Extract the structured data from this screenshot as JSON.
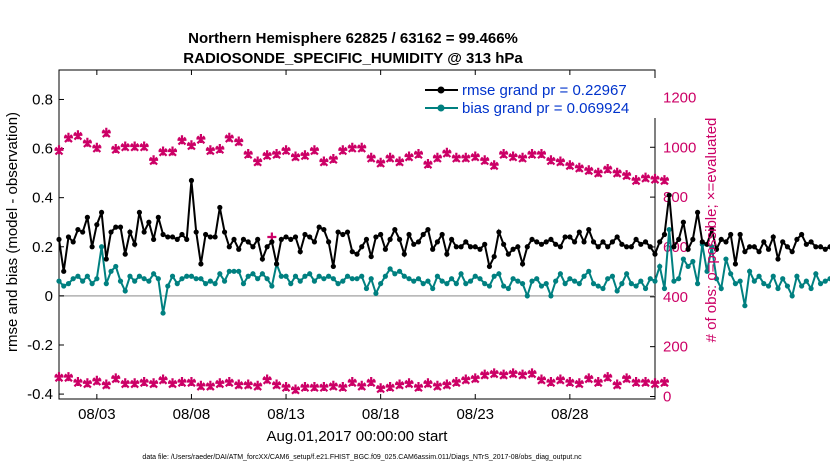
{
  "chart_data": {
    "type": "line",
    "title": "Northern Hemisphere 62825 / 63162 = 99.466%",
    "subtitle": "RADIOSONDE_SPECIFIC_HUMIDITY @ 313 hPa",
    "xlabel": "Aug.01,2017 00:00:00 start",
    "ylabel": "rmse and bias (model - observation)",
    "ylabel_right": "# of obs: o=possible; ×=evaluated",
    "footnote": "data file: /Users/raeder/DAI/ATM_forcXX/CAM6_setup/f.e21.FHIST_BGC.f09_025.CAM6assim.011/Diags_NTrS_2017-08/obs_diag_output.nc",
    "x_range": [
      0,
      31.5
    ],
    "x_ticks": [
      2,
      7,
      12,
      17,
      22,
      27
    ],
    "x_tick_labels": [
      "08/03",
      "08/08",
      "08/13",
      "08/18",
      "08/23",
      "08/28"
    ],
    "ylim": [
      -0.42,
      0.92
    ],
    "y_ticks": [
      -0.4,
      -0.2,
      0,
      0.2,
      0.4,
      0.6,
      0.8
    ],
    "y_tick_labels": [
      "-0.4",
      "-0.2",
      "0",
      "0.2",
      "0.4",
      "0.6",
      "0.8"
    ],
    "y2lim": [
      -10,
      1310
    ],
    "y2_ticks": [
      0,
      200,
      400,
      600,
      800,
      1000,
      1200
    ],
    "y2_tick_labels": [
      "0",
      "200",
      "400",
      "600",
      "800",
      "1000",
      "1200"
    ],
    "zero_line": 0,
    "legend": [
      {
        "label": "rmse grand pr = 0.22967",
        "color": "#000000"
      },
      {
        "label": "bias grand pr = 0.069924",
        "color": "#008080"
      }
    ],
    "colors": {
      "rmse": "#000000",
      "bias": "#008080",
      "obs": "#cc0066",
      "text_blue": "#0033cc",
      "zero": "#b0b0b0"
    },
    "series": [
      {
        "name": "rmse",
        "x_start": 0,
        "x_step": 0.25,
        "values": [
          0.23,
          0.1,
          0.24,
          0.22,
          0.27,
          0.26,
          0.32,
          0.2,
          0.29,
          0.34,
          0.15,
          0.26,
          0.28,
          0.28,
          0.17,
          0.26,
          0.21,
          0.34,
          0.26,
          0.3,
          0.23,
          0.32,
          0.25,
          0.24,
          0.24,
          0.23,
          0.25,
          0.23,
          0.47,
          0.26,
          0.13,
          0.25,
          0.24,
          0.24,
          0.36,
          0.26,
          0.2,
          0.23,
          0.19,
          0.23,
          0.22,
          0.2,
          0.23,
          0.15,
          0.2,
          0.22,
          0.13,
          0.23,
          0.24,
          0.23,
          0.24,
          0.18,
          0.25,
          0.24,
          0.22,
          0.28,
          0.27,
          0.22,
          0.12,
          0.26,
          0.25,
          0.26,
          0.18,
          0.17,
          0.2,
          0.23,
          0.16,
          0.24,
          0.25,
          0.19,
          0.23,
          0.27,
          0.23,
          0.17,
          0.25,
          0.21,
          0.22,
          0.25,
          0.27,
          0.19,
          0.22,
          0.25,
          0.17,
          0.23,
          0.2,
          0.2,
          0.22,
          0.2,
          0.2,
          0.19,
          0.21,
          0.12,
          0.16,
          0.26,
          0.21,
          0.17,
          0.19,
          0.2,
          0.13,
          0.2,
          0.23,
          0.22,
          0.21,
          0.22,
          0.23,
          0.21,
          0.2,
          0.24,
          0.24,
          0.22,
          0.26,
          0.22,
          0.27,
          0.22,
          0.2,
          0.22,
          0.2,
          0.22,
          0.24,
          0.21,
          0.2,
          0.2,
          0.23,
          0.21,
          0.22,
          0.2,
          0.17,
          0.22,
          0.25,
          0.41,
          0.2,
          0.23,
          0.3,
          0.19,
          0.23,
          0.34,
          0.22,
          0.21,
          0.27,
          0.19,
          0.23,
          0.22,
          0.25,
          0.13,
          0.25,
          0.18,
          0.2,
          0.2,
          0.18,
          0.22,
          0.19,
          0.24,
          0.15,
          0.22,
          0.2,
          0.18,
          0.23,
          0.25,
          0.21,
          0.22,
          0.2,
          0.2,
          0.19,
          0.2,
          0.23,
          0.2,
          0.48,
          0.2,
          0.16
        ]
      },
      {
        "name": "bias",
        "x_start": 0,
        "x_step": 0.25,
        "values": [
          0.06,
          0.04,
          0.05,
          0.07,
          0.08,
          0.06,
          0.08,
          0.05,
          0.07,
          0.2,
          0.05,
          0.1,
          0.12,
          0.06,
          0.02,
          0.08,
          0.06,
          0.08,
          0.07,
          0.06,
          0.09,
          0.07,
          -0.07,
          0.04,
          0.08,
          0.05,
          0.07,
          0.08,
          0.08,
          0.07,
          0.07,
          0.05,
          0.06,
          0.05,
          0.09,
          0.06,
          0.1,
          0.1,
          0.1,
          0.05,
          0.08,
          0.09,
          0.07,
          0.09,
          0.07,
          0.04,
          0.13,
          0.08,
          0.08,
          0.05,
          0.08,
          0.06,
          0.08,
          0.09,
          0.06,
          0.08,
          0.07,
          0.08,
          0.07,
          0.05,
          0.06,
          0.08,
          0.07,
          0.07,
          0.08,
          0.03,
          0.07,
          0.01,
          0.05,
          0.08,
          0.11,
          0.09,
          0.1,
          0.08,
          0.07,
          0.06,
          0.07,
          0.05,
          0.06,
          0.03,
          0.08,
          0.06,
          0.05,
          0.07,
          0.05,
          0.09,
          0.05,
          0.06,
          0.08,
          0.07,
          0.05,
          0.04,
          0.08,
          0.09,
          0.04,
          0.03,
          0.07,
          0.06,
          0.05,
          0.0,
          0.06,
          0.07,
          0.04,
          0.05,
          0.0,
          0.06,
          0.09,
          0.05,
          0.07,
          0.06,
          0.05,
          0.08,
          0.1,
          0.05,
          0.04,
          0.03,
          0.07,
          0.08,
          0.02,
          0.05,
          0.09,
          0.05,
          0.04,
          0.06,
          0.03,
          0.07,
          0.06,
          0.12,
          0.03,
          0.27,
          0.06,
          0.07,
          0.15,
          0.12,
          0.14,
          0.05,
          0.21,
          0.1,
          0.2,
          0.07,
          0.03,
          0.15,
          0.09,
          0.05,
          0.06,
          -0.04,
          0.1,
          0.06,
          0.08,
          0.05,
          0.04,
          0.08,
          0.03,
          0.07,
          0.04,
          0.0,
          0.08,
          0.04,
          0.06,
          0.03,
          0.09,
          0.05,
          0.06,
          0.07,
          0.05,
          0.11,
          0.09,
          0.04,
          0.1,
          0.05,
          0.27,
          0.05,
          0.04
        ]
      },
      {
        "name": "obs_possible",
        "x_start": 0,
        "x_step": 0.5,
        "values": [
          990,
          1040,
          1050,
          1020,
          1000,
          1060,
          995,
          1005,
          1005,
          1005,
          950,
          985,
          985,
          1030,
          1010,
          1035,
          990,
          995,
          1040,
          1025,
          975,
          945,
          970,
          975,
          990,
          965,
          970,
          990,
          945,
          955,
          990,
          1000,
          1000,
          960,
          940,
          960,
          945,
          965,
          975,
          935,
          960,
          980,
          960,
          960,
          965,
          950,
          930,
          975,
          965,
          960,
          975,
          975,
          950,
          945,
          930,
          920,
          910,
          900,
          915,
          900,
          890,
          870,
          880,
          875,
          870
        ]
      },
      {
        "name": "obs_evaluated",
        "x_start": 0,
        "x_step": 0.5,
        "values": [
          985,
          1035,
          1045,
          1015,
          995,
          1055,
          990,
          1000,
          1000,
          1000,
          945,
          980,
          980,
          1025,
          1005,
          1030,
          985,
          990,
          1035,
          1020,
          970,
          940,
          965,
          970,
          985,
          960,
          965,
          985,
          940,
          950,
          985,
          995,
          995,
          955,
          935,
          955,
          940,
          960,
          970,
          930,
          955,
          975,
          955,
          955,
          960,
          945,
          925,
          970,
          960,
          955,
          970,
          970,
          945,
          940,
          925,
          915,
          905,
          895,
          910,
          895,
          885,
          865,
          875,
          870,
          865
        ]
      },
      {
        "name": "obs_low_possible",
        "x_start": 0,
        "x_step": 0.5,
        "values": [
          80,
          80,
          60,
          55,
          65,
          50,
          75,
          55,
          55,
          60,
          55,
          70,
          55,
          60,
          60,
          45,
          45,
          55,
          60,
          50,
          50,
          45,
          70,
          50,
          40,
          30,
          40,
          40,
          40,
          45,
          40,
          60,
          45,
          60,
          35,
          40,
          50,
          55,
          40,
          55,
          45,
          50,
          60,
          70,
          75,
          90,
          95,
          90,
          95,
          90,
          95,
          70,
          60,
          70,
          60,
          55,
          75,
          60,
          80,
          50,
          75,
          60,
          60,
          55,
          60
        ]
      },
      {
        "name": "obs_low_evaluated",
        "x_start": 0,
        "x_step": 0.5,
        "values": [
          75,
          75,
          55,
          50,
          60,
          45,
          70,
          50,
          50,
          55,
          50,
          65,
          50,
          55,
          55,
          40,
          40,
          50,
          55,
          45,
          45,
          40,
          65,
          45,
          35,
          25,
          35,
          35,
          35,
          40,
          35,
          55,
          40,
          55,
          30,
          35,
          45,
          50,
          35,
          50,
          40,
          45,
          55,
          65,
          70,
          85,
          90,
          85,
          90,
          85,
          90,
          65,
          55,
          65,
          55,
          50,
          70,
          55,
          75,
          45,
          70,
          55,
          55,
          50,
          55
        ]
      },
      {
        "name": "obs_outlier",
        "x_start": 11.25,
        "x_step": 1,
        "values": [
          640
        ]
      }
    ]
  }
}
